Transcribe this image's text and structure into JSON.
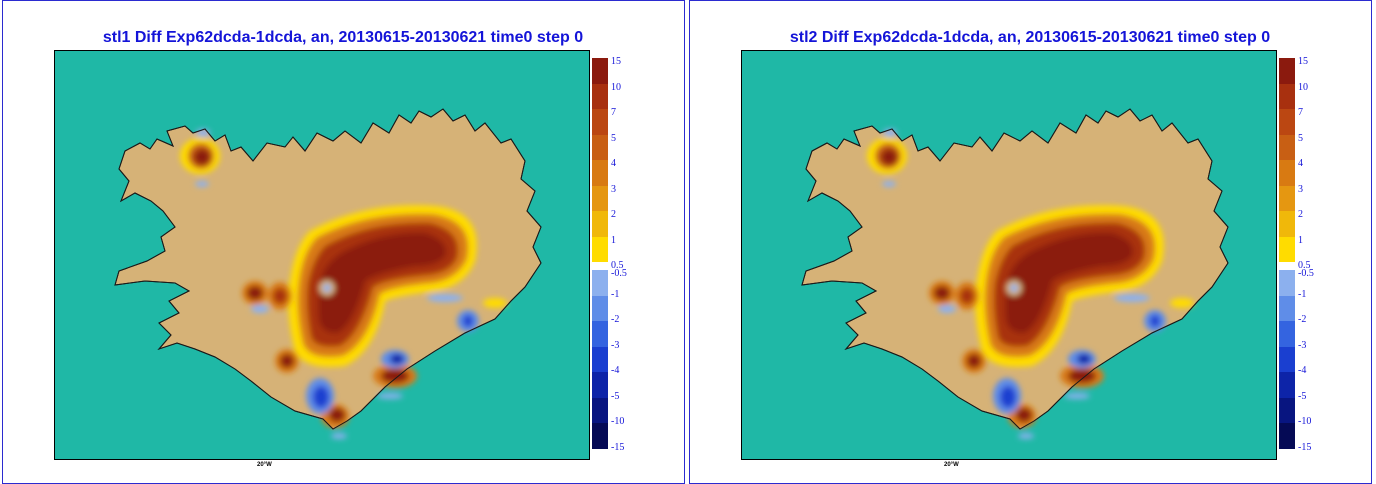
{
  "panels": [
    {
      "title": "stl1 Diff Exp62dcda-1dcda, an, 20130615-20130621 time0 step 0",
      "x_tick": "20°W"
    },
    {
      "title": "stl2 Diff Exp62dcda-1dcda, an, 20130615-20130621 time0 step 0",
      "x_tick": "20°W"
    }
  ],
  "colorbar": {
    "positive": [
      {
        "label": "15",
        "color": "#8b1a0e"
      },
      {
        "label": "10",
        "color": "#a8300f"
      },
      {
        "label": "7",
        "color": "#bb4712"
      },
      {
        "label": "5",
        "color": "#c85f14"
      },
      {
        "label": "4",
        "color": "#d87a12"
      },
      {
        "label": "3",
        "color": "#e59711"
      },
      {
        "label": "2",
        "color": "#f0b80a"
      },
      {
        "label": "1",
        "color": "#ffdc00"
      }
    ],
    "middle_labels": [
      "0.5",
      "-0.5"
    ],
    "negative": [
      {
        "label": "-1",
        "color": "#8cb0ee"
      },
      {
        "label": "-2",
        "color": "#5f8de8"
      },
      {
        "label": "-3",
        "color": "#3464e0"
      },
      {
        "label": "-4",
        "color": "#1a3fd0"
      },
      {
        "label": "-5",
        "color": "#0d24a8"
      },
      {
        "label": "-10",
        "color": "#081580"
      },
      {
        "label": "-15",
        "color": "#050a55"
      }
    ]
  },
  "colors": {
    "sea": "#1fb8a6",
    "land": "#d6b277",
    "title": "#1414d8",
    "frame": "#2b2bd0"
  }
}
